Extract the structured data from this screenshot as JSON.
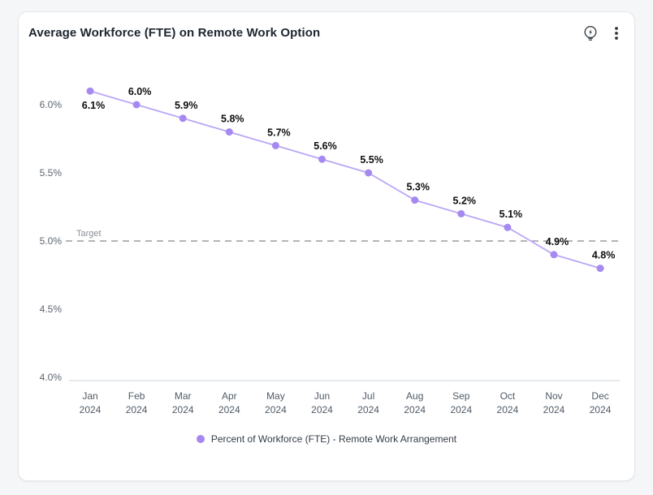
{
  "card": {
    "title": "Average Workforce (FTE) on Remote Work Option",
    "icons": [
      {
        "name": "lightbulb-bolt-icon"
      },
      {
        "name": "kebab-menu-icon"
      }
    ]
  },
  "chart_data": {
    "type": "line",
    "title": "Average Workforce (FTE) on Remote Work Option",
    "categories": [
      "Jan",
      "Feb",
      "Mar",
      "Apr",
      "May",
      "Jun",
      "Jul",
      "Aug",
      "Sep",
      "Oct",
      "Nov",
      "Dec"
    ],
    "category_year": "2024",
    "series": [
      {
        "name": "Percent of Workforce (FTE) - Remote Work Arrangement",
        "values": [
          6.1,
          6.0,
          5.9,
          5.8,
          5.7,
          5.6,
          5.5,
          5.3,
          5.2,
          5.1,
          4.9,
          4.8
        ],
        "labels": [
          "6.1%",
          "6.0%",
          "5.9%",
          "5.8%",
          "5.7%",
          "5.6%",
          "5.5%",
          "5.3%",
          "5.2%",
          "5.1%",
          "4.9%",
          "4.8%"
        ],
        "point_color": "#a689f0",
        "line_color": "#bba6f6"
      }
    ],
    "target_line": {
      "label": "Target",
      "value": 5.0,
      "style": "dashed",
      "color": "#a9a9ad"
    },
    "y_ticks": [
      {
        "value": 6.0,
        "label": "6.0%"
      },
      {
        "value": 5.5,
        "label": "5.5%"
      },
      {
        "value": 5.0,
        "label": "5.0%"
      },
      {
        "value": 4.5,
        "label": "4.5%"
      },
      {
        "value": 4.0,
        "label": "4.0%"
      }
    ],
    "ylim": [
      4.0,
      6.35
    ],
    "grid": false,
    "legend": {
      "position": "bottom",
      "entries": [
        {
          "label": "Percent of Workforce (FTE) - Remote Work Arrangement",
          "color": "#a689f0"
        }
      ]
    }
  }
}
